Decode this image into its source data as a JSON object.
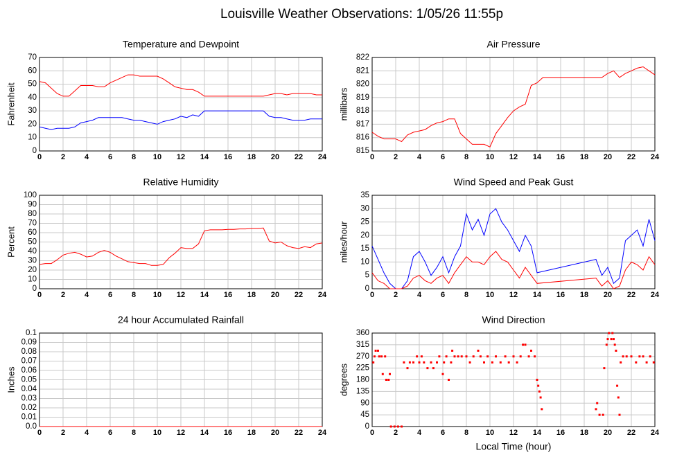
{
  "title": "Louisville Weather Observations: 1/05/26 11:55p",
  "chart_data": [
    {
      "type": "line",
      "title": "Temperature and Dewpoint",
      "ylabel": "Fahrenheit",
      "xlim": [
        0,
        24
      ],
      "xticks": [
        0,
        2,
        4,
        6,
        8,
        10,
        12,
        14,
        16,
        18,
        20,
        22,
        24
      ],
      "ylim": [
        0,
        70
      ],
      "yticks": [
        0,
        10,
        20,
        30,
        40,
        50,
        60,
        70
      ],
      "grid": true,
      "x": [
        0,
        0.5,
        1,
        1.5,
        2,
        2.5,
        3,
        3.5,
        4,
        4.5,
        5,
        5.5,
        6,
        6.5,
        7,
        7.5,
        8,
        8.5,
        9,
        9.5,
        10,
        10.5,
        11,
        11.5,
        12,
        12.5,
        13,
        13.5,
        14,
        14.5,
        15,
        15.5,
        16,
        16.5,
        17,
        17.5,
        18,
        18.5,
        19,
        19.5,
        20,
        20.5,
        21,
        21.5,
        22,
        22.5,
        23,
        23.5,
        24
      ],
      "series": [
        {
          "color": "#ff0000",
          "values": [
            52,
            51,
            47,
            43,
            41,
            41,
            45,
            49,
            49,
            49,
            48,
            48,
            51,
            53,
            55,
            57,
            57,
            56,
            56,
            56,
            56,
            54,
            51,
            48,
            47,
            46,
            46,
            44,
            41,
            41,
            41,
            41,
            41,
            41,
            41,
            41,
            41,
            41,
            41,
            42,
            43,
            43,
            42,
            43,
            43,
            43,
            43,
            42,
            42
          ]
        },
        {
          "color": "#0000ff",
          "values": [
            18,
            17,
            16,
            17,
            17,
            17,
            18,
            21,
            22,
            23,
            25,
            25,
            25,
            25,
            25,
            24,
            23,
            23,
            22,
            21,
            20,
            22,
            23,
            24,
            26,
            25,
            27,
            26,
            30,
            30,
            30,
            30,
            30,
            30,
            30,
            30,
            30,
            30,
            30,
            26,
            25,
            25,
            24,
            23,
            23,
            23,
            24,
            24,
            24
          ]
        }
      ]
    },
    {
      "type": "line",
      "title": "Air Pressure",
      "ylabel": "millibars",
      "xlim": [
        0,
        24
      ],
      "xticks": [
        0,
        2,
        4,
        6,
        8,
        10,
        12,
        14,
        16,
        18,
        20,
        22,
        24
      ],
      "ylim": [
        815,
        822
      ],
      "yticks": [
        815,
        816,
        817,
        818,
        819,
        820,
        821,
        822
      ],
      "grid": true,
      "x": [
        0,
        0.5,
        1,
        1.5,
        2,
        2.5,
        3,
        3.5,
        4,
        4.5,
        5,
        5.5,
        6,
        6.5,
        7,
        7.5,
        8,
        8.5,
        9,
        9.5,
        10,
        10.5,
        11,
        11.5,
        12,
        12.5,
        13,
        13.5,
        14,
        14.5,
        15,
        15.5,
        16,
        16.5,
        17,
        17.5,
        18,
        18.5,
        19,
        19.5,
        20,
        20.5,
        21,
        21.5,
        22,
        22.5,
        23,
        23.5,
        24
      ],
      "series": [
        {
          "color": "#ff0000",
          "values": [
            816.4,
            816.1,
            815.9,
            815.9,
            815.9,
            815.7,
            816.2,
            816.4,
            816.5,
            816.6,
            816.9,
            817.1,
            817.2,
            817.4,
            817.4,
            816.3,
            815.9,
            815.5,
            815.5,
            815.5,
            815.3,
            816.3,
            816.9,
            817.5,
            818.0,
            818.3,
            818.5,
            819.9,
            820.1,
            820.5,
            820.5,
            820.5,
            820.5,
            820.5,
            820.5,
            820.5,
            820.5,
            820.5,
            820.5,
            820.5,
            820.8,
            821.0,
            820.5,
            820.8,
            821.0,
            821.2,
            821.3,
            821.0,
            820.7
          ]
        }
      ]
    },
    {
      "type": "line",
      "title": "Relative Humidity",
      "ylabel": "Percent",
      "xlim": [
        0,
        24
      ],
      "xticks": [
        0,
        2,
        4,
        6,
        8,
        10,
        12,
        14,
        16,
        18,
        20,
        22,
        24
      ],
      "ylim": [
        0,
        100
      ],
      "yticks": [
        0,
        10,
        20,
        30,
        40,
        50,
        60,
        70,
        80,
        90,
        100
      ],
      "grid": true,
      "x": [
        0,
        0.5,
        1,
        1.5,
        2,
        2.5,
        3,
        3.5,
        4,
        4.5,
        5,
        5.5,
        6,
        6.5,
        7,
        7.5,
        8,
        8.5,
        9,
        9.5,
        10,
        10.5,
        11,
        11.5,
        12,
        12.5,
        13,
        13.5,
        14,
        14.5,
        15,
        15.5,
        16,
        16.5,
        17,
        17.5,
        18,
        18.5,
        19,
        19.5,
        20,
        20.5,
        21,
        21.5,
        22,
        22.5,
        23,
        23.5,
        24
      ],
      "series": [
        {
          "color": "#ff0000",
          "values": [
            26,
            27,
            27,
            31,
            36,
            38,
            39,
            37,
            34,
            35,
            39,
            41,
            39,
            35,
            32,
            29,
            28,
            27,
            27,
            25,
            25,
            26,
            33,
            38,
            44,
            43,
            43,
            48,
            62,
            63,
            63,
            63,
            63.5,
            63.5,
            64,
            64,
            64.5,
            64.5,
            65,
            51,
            49,
            50,
            46,
            44,
            43,
            45,
            44,
            48,
            49
          ]
        }
      ]
    },
    {
      "type": "line",
      "title": "Wind Speed and Peak Gust",
      "ylabel": "miles/hour",
      "xlim": [
        0,
        24
      ],
      "xticks": [
        0,
        2,
        4,
        6,
        8,
        10,
        12,
        14,
        16,
        18,
        20,
        22,
        24
      ],
      "ylim": [
        0,
        35
      ],
      "yticks": [
        0,
        5,
        10,
        15,
        20,
        25,
        30,
        35
      ],
      "grid": true,
      "x": [
        0,
        0.5,
        1,
        1.5,
        2,
        2.5,
        3,
        3.5,
        4,
        4.5,
        5,
        5.5,
        6,
        6.5,
        7,
        7.5,
        8,
        8.5,
        9,
        9.5,
        10,
        10.5,
        11,
        11.5,
        12,
        12.5,
        13,
        13.5,
        14,
        19,
        19.5,
        20,
        20.5,
        21,
        21.5,
        22,
        22.5,
        23,
        23.5,
        24
      ],
      "series": [
        {
          "color": "#0000ff",
          "values": [
            16,
            11,
            6,
            2,
            0,
            0,
            3,
            12,
            14,
            10,
            5,
            8,
            12,
            6,
            12,
            16,
            28,
            22,
            26,
            20,
            28,
            30,
            25,
            22,
            18,
            14,
            20,
            16,
            6,
            11,
            5,
            8,
            2,
            4,
            18,
            20,
            22,
            16,
            26,
            18
          ]
        },
        {
          "color": "#ff0000",
          "values": [
            6,
            3,
            2,
            0,
            0,
            0,
            1,
            4,
            5,
            3,
            2,
            4,
            5,
            2,
            6,
            9,
            12,
            10,
            10,
            9,
            12,
            14,
            11,
            10,
            7,
            4,
            8,
            5,
            2,
            4,
            1,
            3,
            0,
            1,
            7,
            10,
            9,
            7,
            12,
            9
          ]
        }
      ]
    },
    {
      "type": "line",
      "title": "24 hour Accumulated Rainfall",
      "ylabel": "Inches",
      "xlim": [
        0,
        24
      ],
      "xticks": [
        0,
        2,
        4,
        6,
        8,
        10,
        12,
        14,
        16,
        18,
        20,
        22,
        24
      ],
      "ylim": [
        0,
        0.1
      ],
      "yticks": [
        {
          "value": 0,
          "label": "0.0"
        },
        0.01,
        0.02,
        0.03,
        0.04,
        0.05,
        0.06,
        0.07,
        0.08,
        0.09,
        0.1
      ],
      "grid": true,
      "x": [
        0,
        24
      ],
      "series": [
        {
          "color": "#ff0000",
          "values": [
            0,
            0
          ]
        }
      ]
    },
    {
      "type": "scatter",
      "title": "Wind Direction",
      "ylabel": "degrees",
      "xlabel": "Local Time (hour)",
      "xlim": [
        0,
        24
      ],
      "xticks": [
        0,
        2,
        4,
        6,
        8,
        10,
        12,
        14,
        16,
        18,
        20,
        22,
        24
      ],
      "ylim": [
        0,
        360
      ],
      "yticks": [
        0,
        45,
        90,
        135,
        180,
        225,
        270,
        315,
        360
      ],
      "grid": true,
      "x": [
        0.1,
        0.2,
        0.3,
        0.5,
        0.6,
        0.8,
        0.9,
        1.1,
        1.2,
        1.4,
        1.5,
        1.6,
        1.9,
        2.2,
        2.5,
        2.7,
        3.0,
        3.2,
        3.5,
        3.8,
        4.0,
        4.2,
        4.4,
        4.7,
        5.0,
        5.2,
        5.5,
        5.7,
        6.0,
        6.1,
        6.3,
        6.5,
        6.7,
        6.8,
        7.0,
        7.3,
        7.6,
        8.0,
        8.3,
        8.6,
        9.0,
        9.2,
        9.5,
        9.8,
        10.2,
        10.5,
        10.9,
        11.3,
        11.6,
        12.0,
        12.3,
        12.6,
        12.8,
        13.0,
        13.3,
        13.5,
        13.8,
        14.0,
        14.1,
        14.2,
        14.3,
        14.4,
        19.0,
        19.1,
        19.3,
        19.6,
        19.7,
        19.9,
        20.0,
        20.1,
        20.3,
        20.4,
        20.5,
        20.6,
        20.7,
        20.8,
        20.9,
        21.0,
        21.1,
        21.3,
        21.6,
        22.0,
        22.4,
        22.7,
        23.0,
        23.3,
        23.6,
        23.9
      ],
      "series": [
        {
          "color": "#ff0000",
          "values": [
            247,
            270,
            292,
            292,
            270,
            270,
            202,
            270,
            180,
            180,
            202,
            0,
            0,
            0,
            0,
            247,
            225,
            247,
            247,
            270,
            247,
            270,
            247,
            225,
            247,
            225,
            247,
            270,
            202,
            247,
            270,
            180,
            247,
            292,
            270,
            270,
            270,
            270,
            247,
            270,
            292,
            270,
            247,
            270,
            247,
            270,
            247,
            270,
            247,
            270,
            247,
            270,
            315,
            315,
            270,
            292,
            270,
            180,
            157,
            135,
            112,
            67,
            67,
            90,
            45,
            45,
            225,
            315,
            337,
            360,
            337,
            360,
            337,
            315,
            292,
            157,
            112,
            45,
            247,
            270,
            270,
            270,
            247,
            270,
            270,
            247,
            270,
            247
          ]
        }
      ]
    }
  ]
}
